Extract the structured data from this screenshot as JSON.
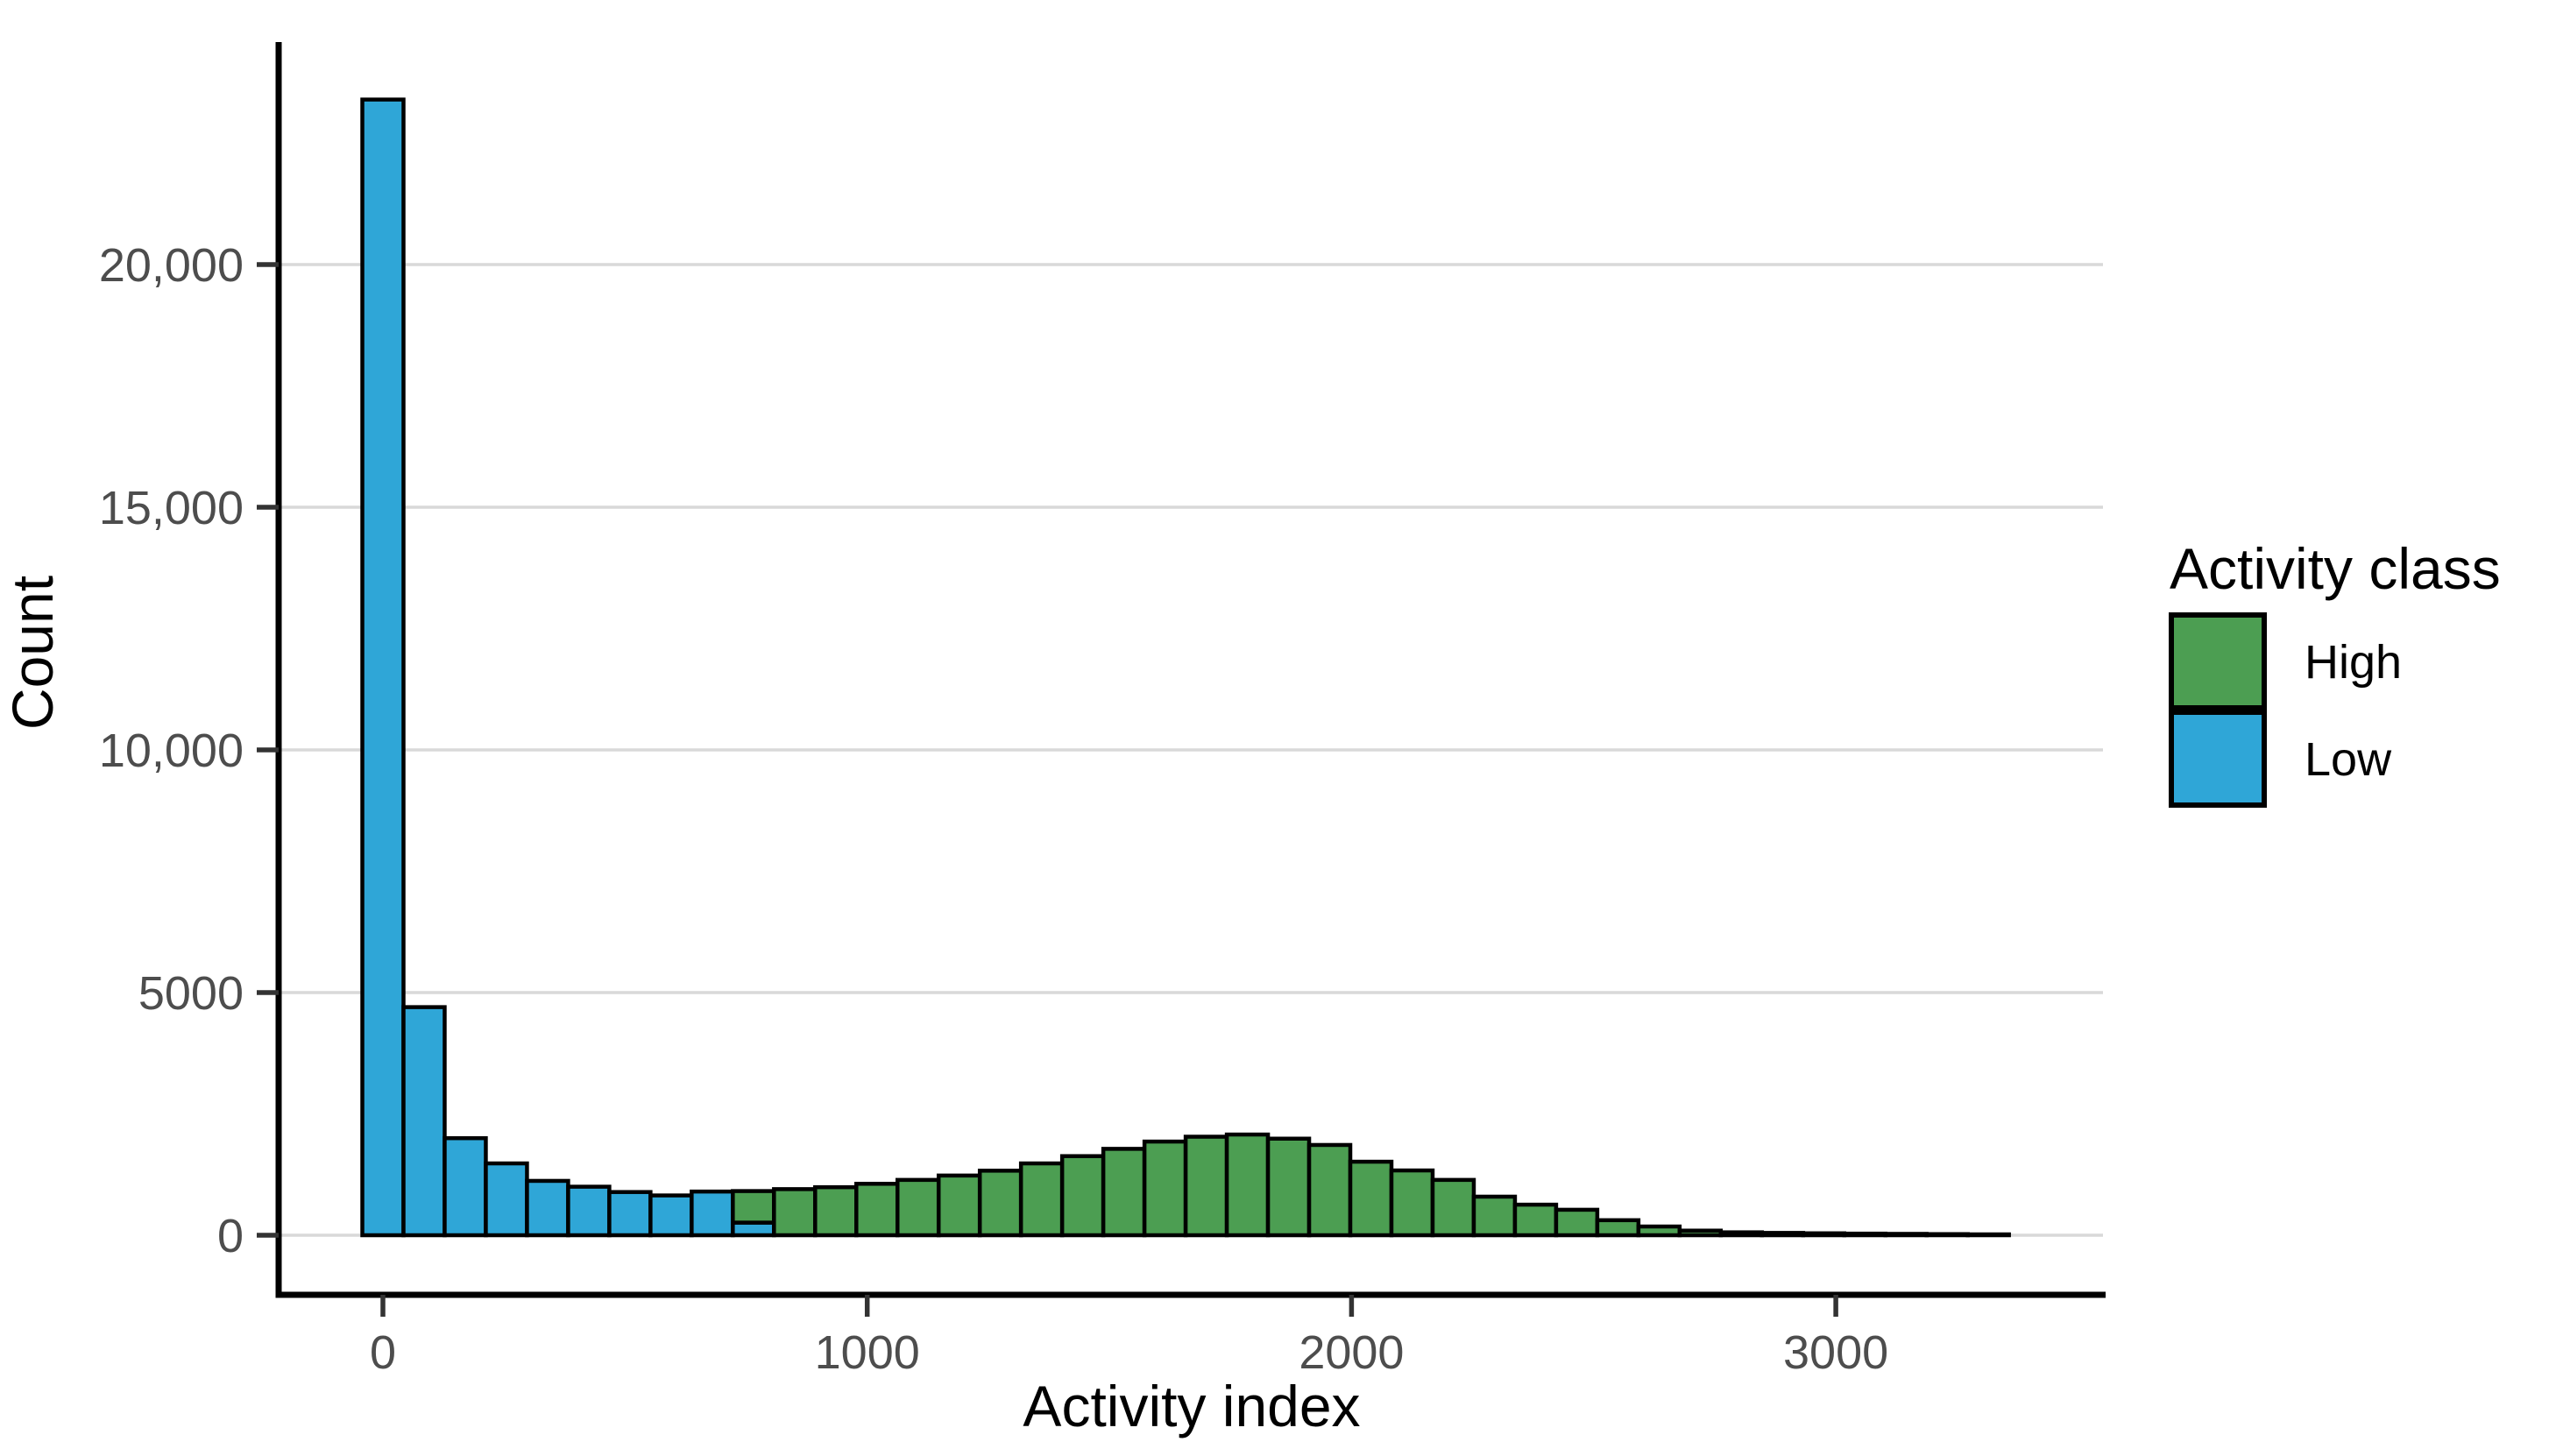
{
  "chart_data": {
    "type": "bar",
    "subtype": "stacked-histogram",
    "title": "",
    "xlabel": "Activity index",
    "ylabel": "Count",
    "x_tick_values": [
      0,
      1000,
      2000,
      3000
    ],
    "x_tick_labels": [
      "0",
      "1000",
      "2000",
      "3000"
    ],
    "y_tick_values": [
      0,
      5000,
      10000,
      15000,
      20000
    ],
    "y_tick_labels": [
      "0",
      "5000",
      "10,000",
      "15,000",
      "20,000"
    ],
    "xlim": [
      -210,
      3550
    ],
    "ylim": [
      0,
      24500
    ],
    "grid": "horizontal-major-only",
    "bin_width": 85,
    "legend": {
      "title": "Activity class",
      "position": "right",
      "entries": [
        {
          "label": "High",
          "color": "#4C9E52"
        },
        {
          "label": "Low",
          "color": "#2FA6D7"
        }
      ]
    },
    "colors": {
      "high_fill": "#4C9E52",
      "low_fill": "#2FA6D7",
      "bar_outline": "#000000",
      "gridline": "#D9D9D9",
      "axis_line": "#000000",
      "tick_mark": "#333333",
      "tick_label": "#4D4D4D"
    },
    "bins": [
      {
        "x": 0,
        "low": 23400,
        "high": 0
      },
      {
        "x": 85,
        "low": 4700,
        "high": 0
      },
      {
        "x": 170,
        "low": 2000,
        "high": 0
      },
      {
        "x": 255,
        "low": 1480,
        "high": 0
      },
      {
        "x": 340,
        "low": 1120,
        "high": 0
      },
      {
        "x": 425,
        "low": 1000,
        "high": 0
      },
      {
        "x": 510,
        "low": 890,
        "high": 0
      },
      {
        "x": 595,
        "low": 820,
        "high": 0
      },
      {
        "x": 680,
        "low": 900,
        "high": 0
      },
      {
        "x": 765,
        "low": 260,
        "high": 650
      },
      {
        "x": 850,
        "low": 0,
        "high": 950
      },
      {
        "x": 935,
        "low": 0,
        "high": 990
      },
      {
        "x": 1020,
        "low": 0,
        "high": 1060
      },
      {
        "x": 1105,
        "low": 0,
        "high": 1140
      },
      {
        "x": 1190,
        "low": 0,
        "high": 1230
      },
      {
        "x": 1275,
        "low": 0,
        "high": 1330
      },
      {
        "x": 1360,
        "low": 0,
        "high": 1480
      },
      {
        "x": 1445,
        "low": 0,
        "high": 1630
      },
      {
        "x": 1530,
        "low": 0,
        "high": 1780
      },
      {
        "x": 1615,
        "low": 0,
        "high": 1930
      },
      {
        "x": 1700,
        "low": 0,
        "high": 2030
      },
      {
        "x": 1785,
        "low": 0,
        "high": 2075
      },
      {
        "x": 1870,
        "low": 0,
        "high": 1990
      },
      {
        "x": 1955,
        "low": 0,
        "high": 1860
      },
      {
        "x": 2040,
        "low": 0,
        "high": 1515
      },
      {
        "x": 2125,
        "low": 0,
        "high": 1335
      },
      {
        "x": 2210,
        "low": 0,
        "high": 1140
      },
      {
        "x": 2295,
        "low": 0,
        "high": 795
      },
      {
        "x": 2380,
        "low": 0,
        "high": 630
      },
      {
        "x": 2465,
        "low": 0,
        "high": 525
      },
      {
        "x": 2550,
        "low": 0,
        "high": 310
      },
      {
        "x": 2635,
        "low": 0,
        "high": 180
      },
      {
        "x": 2720,
        "low": 0,
        "high": 95
      },
      {
        "x": 2805,
        "low": 0,
        "high": 60
      },
      {
        "x": 2890,
        "low": 0,
        "high": 48
      },
      {
        "x": 2975,
        "low": 0,
        "high": 40
      },
      {
        "x": 3060,
        "low": 0,
        "high": 33
      },
      {
        "x": 3145,
        "low": 0,
        "high": 28
      },
      {
        "x": 3230,
        "low": 0,
        "high": 23
      },
      {
        "x": 3315,
        "low": 0,
        "high": 18
      }
    ]
  }
}
